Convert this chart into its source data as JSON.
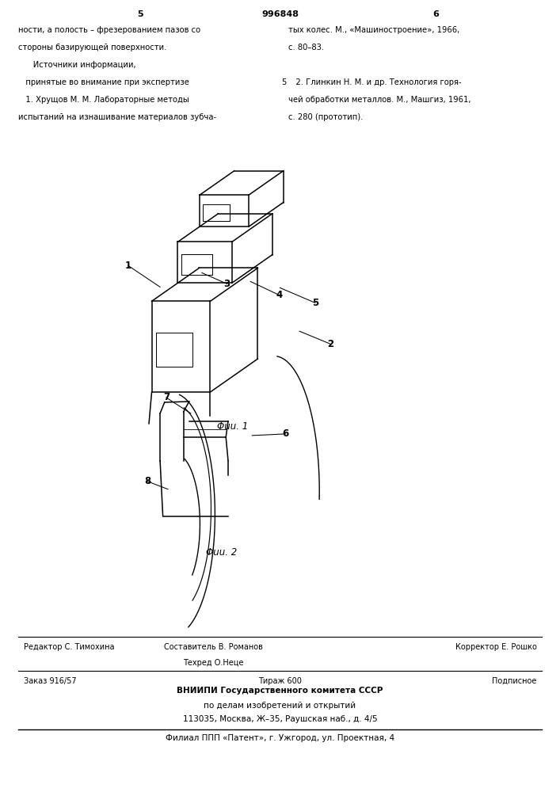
{
  "background_color": "#f5f5f0",
  "page_color": "#ffffff",
  "header_left_col": "5",
  "header_center": "996848",
  "header_right_col": "6",
  "text_left_col1": "ности, а полость – фрезерованием пазов со",
  "text_left_col2": "стороны базирующей поверхности.",
  "text_left_col3": "Источники информации,",
  "text_left_col4": "принятые во внимание при экспертизе",
  "text_left_col5": "1. Хрущов М. М. Лабораторные методы",
  "text_left_col6": "испытаний на изнашивание материалов зубча-",
  "text_right_col1": "тых колес. М., «Машиностроение», 1966,",
  "text_right_col2": "с. 80–83.",
  "text_right_col3": "2. Глинкин Н. М. и др. Технология горя-",
  "text_right_col4": "чей обработки металлов. М., Машгиз, 1961,",
  "text_right_col5": "с. 280 (прототип).",
  "fig1_caption": "Φuu. 1",
  "fig2_caption": "Φuu. 2",
  "footer_line1_left": "Редактор С. Тимохина",
  "footer_line1_center": "Составитель В. Романов",
  "footer_line1_center2": "Техред О.Неце",
  "footer_line1_right": "Корректор Е. Рошко",
  "footer_line2_left": "Заказ 916/57",
  "footer_line2_center": "Тираж 600",
  "footer_line2_right": "Подписное",
  "footer_line3": "ВНИИПИ Государственного комитета СССР",
  "footer_line4": "по делам изобретений и открытий",
  "footer_line5": "113035, Москва, Ж–35, Раушская наб., д. 4/5",
  "footer_line6": "Филиал ППП «Патент», г. Ужгород, ул. Проектная, 4"
}
